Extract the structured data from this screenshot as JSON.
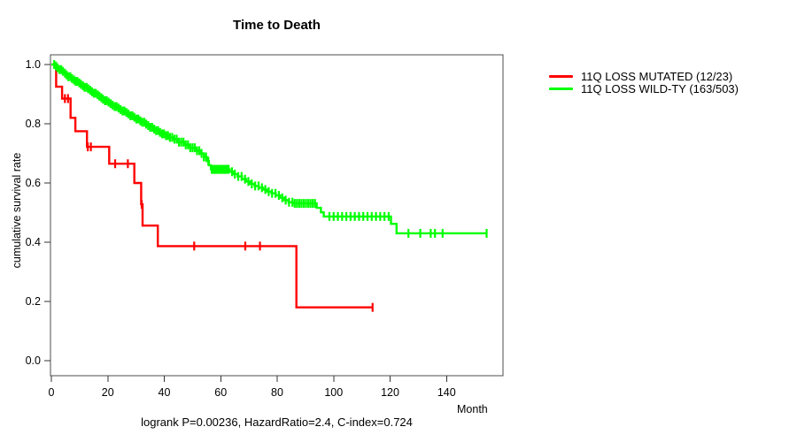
{
  "page": {
    "background": "#ffffff"
  },
  "chart_data": {
    "type": "line",
    "subtype": "kaplan_meier_step_curve",
    "title": "Time to Death",
    "xlabel": "Month",
    "ylabel": "cumulative survival rate",
    "footer": "logrank P=0.00236, HazardRatio=2.4, C-index=0.724",
    "xlim": [
      0,
      160
    ],
    "ylim": [
      0.0,
      1.0
    ],
    "xticks": [
      0,
      20,
      40,
      60,
      80,
      100,
      120,
      140
    ],
    "ytick_labels": [
      "0.0",
      "0.2",
      "0.4",
      "0.6",
      "0.8",
      "1.0"
    ],
    "grid": false,
    "legend_position": "right_outside",
    "series": [
      {
        "name": "11Q LOSS MUTATED (12/23)",
        "slug": "mutated",
        "color": "#ff0000",
        "steps": [
          [
            0,
            1.0
          ],
          [
            1.7,
            0.925
          ],
          [
            3.8,
            0.885
          ],
          [
            6.8,
            0.82
          ],
          [
            8.5,
            0.775
          ],
          [
            12.6,
            0.722
          ],
          [
            20.5,
            0.665
          ],
          [
            29.4,
            0.6
          ],
          [
            31.8,
            0.528
          ],
          [
            32.3,
            0.456
          ],
          [
            37.7,
            0.387
          ],
          [
            86.8,
            0.18
          ]
        ],
        "end_time": 113.8,
        "censor_times": [
          4.8,
          5.9,
          12.9,
          14.0,
          22.6,
          27.1,
          32.0,
          50.6,
          68.7,
          73.9,
          113.8
        ]
      },
      {
        "name": "11Q LOSS WILD-TY (163/503)",
        "slug": "wild-type",
        "color": "#00ff00",
        "steps": [
          [
            0,
            1.0
          ],
          [
            1.2,
            0.995
          ],
          [
            2.0,
            0.989
          ],
          [
            2.8,
            0.983
          ],
          [
            3.6,
            0.977
          ],
          [
            4.4,
            0.971
          ],
          [
            5.2,
            0.965
          ],
          [
            6.0,
            0.959
          ],
          [
            6.8,
            0.953
          ],
          [
            7.6,
            0.948
          ],
          [
            8.5,
            0.943
          ],
          [
            9.3,
            0.938
          ],
          [
            10.1,
            0.933
          ],
          [
            11.0,
            0.928
          ],
          [
            11.8,
            0.923
          ],
          [
            12.6,
            0.918
          ],
          [
            13.4,
            0.913
          ],
          [
            14.2,
            0.908
          ],
          [
            15.0,
            0.903
          ],
          [
            15.8,
            0.898
          ],
          [
            16.6,
            0.893
          ],
          [
            17.4,
            0.888
          ],
          [
            18.2,
            0.883
          ],
          [
            19.0,
            0.878
          ],
          [
            19.8,
            0.873
          ],
          [
            20.6,
            0.868
          ],
          [
            21.5,
            0.863
          ],
          [
            22.4,
            0.858
          ],
          [
            23.3,
            0.853
          ],
          [
            24.2,
            0.848
          ],
          [
            25.1,
            0.843
          ],
          [
            26.0,
            0.838
          ],
          [
            27.0,
            0.833
          ],
          [
            28.0,
            0.827
          ],
          [
            29.0,
            0.822
          ],
          [
            30.0,
            0.816
          ],
          [
            31.0,
            0.81
          ],
          [
            32.0,
            0.805
          ],
          [
            33.0,
            0.799
          ],
          [
            34.0,
            0.794
          ],
          [
            35.0,
            0.788
          ],
          [
            36.0,
            0.782
          ],
          [
            37.0,
            0.777
          ],
          [
            38.0,
            0.771
          ],
          [
            39.0,
            0.766
          ],
          [
            40.0,
            0.76
          ],
          [
            41.5,
            0.754
          ],
          [
            43.0,
            0.748
          ],
          [
            45.0,
            0.738
          ],
          [
            47.0,
            0.729
          ],
          [
            49.0,
            0.719
          ],
          [
            51.0,
            0.709
          ],
          [
            53.0,
            0.7
          ],
          [
            54.0,
            0.688
          ],
          [
            55.0,
            0.674
          ],
          [
            55.8,
            0.66
          ],
          [
            56.5,
            0.646
          ],
          [
            63.2,
            0.638
          ],
          [
            64.5,
            0.63
          ],
          [
            66.0,
            0.622
          ],
          [
            67.5,
            0.613
          ],
          [
            69.0,
            0.605
          ],
          [
            70.5,
            0.597
          ],
          [
            72.0,
            0.59
          ],
          [
            73.5,
            0.584
          ],
          [
            75.0,
            0.578
          ],
          [
            76.5,
            0.571
          ],
          [
            78.0,
            0.565
          ],
          [
            79.5,
            0.558
          ],
          [
            81.0,
            0.55
          ],
          [
            82.5,
            0.542
          ],
          [
            84.0,
            0.535
          ],
          [
            85.5,
            0.531
          ],
          [
            94.0,
            0.516
          ],
          [
            95.5,
            0.501
          ],
          [
            96.5,
            0.487
          ],
          [
            120.3,
            0.462
          ],
          [
            122.3,
            0.43
          ]
        ],
        "end_time": 154.2,
        "censor_times": [
          1.0,
          1.6,
          2.2,
          2.9,
          3.5,
          4.1,
          4.8,
          5.4,
          6.0,
          6.7,
          7.3,
          8.0,
          8.6,
          9.2,
          9.9,
          10.5,
          11.2,
          11.8,
          12.5,
          13.1,
          13.8,
          14.4,
          15.1,
          15.7,
          16.4,
          17.0,
          17.7,
          18.3,
          19.0,
          19.6,
          20.3,
          21.0,
          21.7,
          22.4,
          23.1,
          23.8,
          24.5,
          25.2,
          25.9,
          26.6,
          27.3,
          28.0,
          28.7,
          29.4,
          30.1,
          30.8,
          31.5,
          32.2,
          32.9,
          33.6,
          34.3,
          35.0,
          35.7,
          36.4,
          37.1,
          37.8,
          38.5,
          39.2,
          39.9,
          40.6,
          41.3,
          42.0,
          42.8,
          43.6,
          44.4,
          45.2,
          46.0,
          46.8,
          47.6,
          48.4,
          49.2,
          50.0,
          50.8,
          51.6,
          52.4,
          53.2,
          54.0,
          54.8,
          55.6,
          56.8,
          57.2,
          57.6,
          58.0,
          58.4,
          58.8,
          59.2,
          59.6,
          60.0,
          60.4,
          60.8,
          61.2,
          61.6,
          62.0,
          62.4,
          62.8,
          64.0,
          65.0,
          66.2,
          67.4,
          68.6,
          69.8,
          71.0,
          72.2,
          73.4,
          74.6,
          75.8,
          77.0,
          78.2,
          79.4,
          80.6,
          81.8,
          83.0,
          84.2,
          85.4,
          86.2,
          87.0,
          87.8,
          88.6,
          89.4,
          90.2,
          91.0,
          91.8,
          92.6,
          93.4,
          98.5,
          100.0,
          101.5,
          103.0,
          104.5,
          106.0,
          107.5,
          109.0,
          110.5,
          112.0,
          113.5,
          115.0,
          116.5,
          118.0,
          119.5,
          126.5,
          130.7,
          134.4,
          135.9,
          138.6,
          154.2
        ]
      }
    ]
  }
}
